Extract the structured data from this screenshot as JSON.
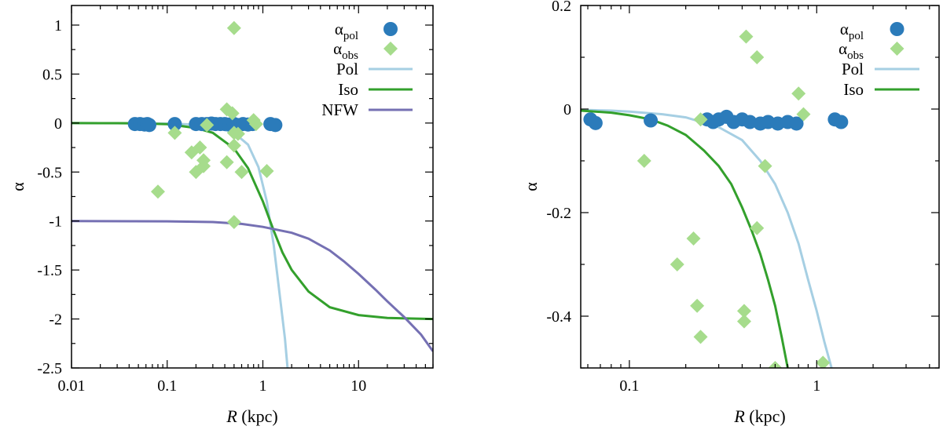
{
  "chart_data": [
    {
      "type": "scatter+line",
      "panel": "left",
      "xlabel_italic": "R",
      "xlabel_rest": " (kpc)",
      "ylabel": "α",
      "xscale": "log",
      "xlim": [
        0.01,
        60
      ],
      "ylim": [
        -2.5,
        1.2
      ],
      "grid": false,
      "legend_position": "top-right",
      "xticks": [
        0.01,
        0.1,
        1,
        10
      ],
      "xtick_labels": [
        "0.01",
        "0.1",
        "1",
        "10"
      ],
      "yticks": [
        -2.5,
        -2,
        -1.5,
        -1,
        -0.5,
        0,
        0.5,
        1
      ],
      "ytick_labels": [
        "-2.5",
        "-2",
        "-1.5",
        "-1",
        "-0.5",
        "0",
        "0.5",
        "1"
      ],
      "series": [
        {
          "name": "α",
          "name_sub": "pol",
          "kind": "points",
          "marker": "circle",
          "color": "#2b7bba",
          "points": [
            [
              0.046,
              -0.01
            ],
            [
              0.052,
              -0.01
            ],
            [
              0.058,
              -0.015
            ],
            [
              0.062,
              -0.01
            ],
            [
              0.065,
              -0.02
            ],
            [
              0.12,
              -0.01
            ],
            [
              0.2,
              -0.01
            ],
            [
              0.23,
              -0.01
            ],
            [
              0.26,
              -0.01
            ],
            [
              0.29,
              -0.005
            ],
            [
              0.32,
              -0.01
            ],
            [
              0.36,
              -0.01
            ],
            [
              0.4,
              -0.01
            ],
            [
              0.45,
              -0.015
            ],
            [
              0.5,
              -0.01
            ],
            [
              0.55,
              -0.02
            ],
            [
              0.62,
              -0.01
            ],
            [
              0.7,
              -0.015
            ],
            [
              0.78,
              -0.01
            ],
            [
              1.2,
              -0.01
            ],
            [
              1.35,
              -0.02
            ]
          ]
        },
        {
          "name": "α",
          "name_sub": "obs",
          "kind": "points",
          "marker": "diamond",
          "color": "#a6dc8c",
          "points": [
            [
              0.5,
              0.97
            ],
            [
              0.42,
              0.14
            ],
            [
              0.48,
              0.1
            ],
            [
              0.8,
              0.03
            ],
            [
              0.85,
              -0.01
            ],
            [
              0.26,
              -0.02
            ],
            [
              0.5,
              -0.1
            ],
            [
              0.12,
              -0.1
            ],
            [
              0.55,
              -0.11
            ],
            [
              0.5,
              -0.23
            ],
            [
              0.22,
              -0.25
            ],
            [
              0.18,
              -0.3
            ],
            [
              0.24,
              -0.38
            ],
            [
              0.42,
              -0.4
            ],
            [
              0.24,
              -0.44
            ],
            [
              0.2,
              -0.5
            ],
            [
              0.6,
              -0.5
            ],
            [
              1.1,
              -0.49
            ],
            [
              0.08,
              -0.7
            ],
            [
              0.5,
              -1.01
            ]
          ]
        },
        {
          "name": "Pol",
          "kind": "line",
          "color": "#a6cfe3",
          "points": [
            [
              0.01,
              -0.0002
            ],
            [
              0.05,
              -0.002
            ],
            [
              0.1,
              -0.005
            ],
            [
              0.2,
              -0.015
            ],
            [
              0.3,
              -0.035
            ],
            [
              0.5,
              -0.1
            ],
            [
              0.7,
              -0.22
            ],
            [
              0.9,
              -0.45
            ],
            [
              1.1,
              -0.8
            ],
            [
              1.3,
              -1.25
            ],
            [
              1.5,
              -1.75
            ],
            [
              1.7,
              -2.2
            ],
            [
              1.85,
              -2.6
            ],
            [
              2.0,
              -3.0
            ]
          ]
        },
        {
          "name": "Iso",
          "kind": "line",
          "color": "#33a02c",
          "points": [
            [
              0.01,
              -0.0001
            ],
            [
              0.03,
              -0.001
            ],
            [
              0.05,
              -0.003
            ],
            [
              0.1,
              -0.012
            ],
            [
              0.2,
              -0.05
            ],
            [
              0.3,
              -0.1
            ],
            [
              0.5,
              -0.26
            ],
            [
              0.7,
              -0.46
            ],
            [
              1.0,
              -0.8
            ],
            [
              1.3,
              -1.1
            ],
            [
              1.6,
              -1.32
            ],
            [
              2.0,
              -1.5
            ],
            [
              3.0,
              -1.72
            ],
            [
              5.0,
              -1.88
            ],
            [
              10,
              -1.96
            ],
            [
              20,
              -1.99
            ],
            [
              60,
              -2.0
            ]
          ]
        },
        {
          "name": "NFW",
          "kind": "line",
          "color": "#7570b3",
          "points": [
            [
              0.01,
              -1.0
            ],
            [
              0.1,
              -1.003
            ],
            [
              0.3,
              -1.01
            ],
            [
              0.6,
              -1.03
            ],
            [
              1,
              -1.06
            ],
            [
              2,
              -1.12
            ],
            [
              3,
              -1.18
            ],
            [
              5,
              -1.3
            ],
            [
              7,
              -1.41
            ],
            [
              10,
              -1.54
            ],
            [
              15,
              -1.7
            ],
            [
              20,
              -1.82
            ],
            [
              30,
              -1.98
            ],
            [
              45,
              -2.16
            ],
            [
              60,
              -2.33
            ]
          ]
        }
      ]
    },
    {
      "type": "scatter+line",
      "panel": "right",
      "xlabel_italic": "R",
      "xlabel_rest": " (kpc)",
      "ylabel": "α",
      "xscale": "log",
      "xlim": [
        0.055,
        4.5
      ],
      "ylim": [
        -0.5,
        0.2
      ],
      "grid": false,
      "legend_position": "top-right",
      "xticks": [
        0.1,
        1
      ],
      "xtick_labels": [
        "0.1",
        "1"
      ],
      "yticks": [
        -0.4,
        -0.2,
        0,
        0.2
      ],
      "ytick_labels": [
        "-0.4",
        "-0.2",
        "0",
        "0.2"
      ],
      "series": [
        {
          "name": "α",
          "name_sub": "pol",
          "kind": "points",
          "marker": "circle",
          "color": "#2b7bba",
          "points": [
            [
              0.062,
              -0.02
            ],
            [
              0.066,
              -0.027
            ],
            [
              0.13,
              -0.022
            ],
            [
              0.26,
              -0.02
            ],
            [
              0.28,
              -0.025
            ],
            [
              0.3,
              -0.02
            ],
            [
              0.33,
              -0.015
            ],
            [
              0.36,
              -0.025
            ],
            [
              0.4,
              -0.02
            ],
            [
              0.44,
              -0.025
            ],
            [
              0.5,
              -0.028
            ],
            [
              0.55,
              -0.025
            ],
            [
              0.62,
              -0.028
            ],
            [
              0.7,
              -0.025
            ],
            [
              0.78,
              -0.028
            ],
            [
              1.25,
              -0.02
            ],
            [
              1.35,
              -0.025
            ]
          ]
        },
        {
          "name": "α",
          "name_sub": "obs",
          "kind": "points",
          "marker": "diamond",
          "color": "#a6dc8c",
          "points": [
            [
              0.42,
              0.14
            ],
            [
              0.48,
              0.1
            ],
            [
              0.8,
              0.03
            ],
            [
              0.85,
              -0.01
            ],
            [
              0.24,
              -0.02
            ],
            [
              0.53,
              -0.11
            ],
            [
              0.12,
              -0.1
            ],
            [
              0.48,
              -0.23
            ],
            [
              0.22,
              -0.25
            ],
            [
              0.18,
              -0.3
            ],
            [
              0.23,
              -0.38
            ],
            [
              0.41,
              -0.39
            ],
            [
              0.41,
              -0.41
            ],
            [
              0.24,
              -0.44
            ],
            [
              0.6,
              -0.5
            ],
            [
              1.08,
              -0.49
            ]
          ]
        },
        {
          "name": "Pol",
          "kind": "line",
          "color": "#a6cfe3",
          "points": [
            [
              0.055,
              -0.0015
            ],
            [
              0.08,
              -0.003
            ],
            [
              0.1,
              -0.005
            ],
            [
              0.15,
              -0.01
            ],
            [
              0.2,
              -0.016
            ],
            [
              0.3,
              -0.035
            ],
            [
              0.4,
              -0.06
            ],
            [
              0.5,
              -0.1
            ],
            [
              0.6,
              -0.145
            ],
            [
              0.7,
              -0.2
            ],
            [
              0.8,
              -0.26
            ],
            [
              0.9,
              -0.33
            ],
            [
              1.0,
              -0.39
            ],
            [
              1.1,
              -0.45
            ],
            [
              1.2,
              -0.5
            ]
          ]
        },
        {
          "name": "Iso",
          "kind": "line",
          "color": "#33a02c",
          "points": [
            [
              0.055,
              -0.003
            ],
            [
              0.08,
              -0.007
            ],
            [
              0.1,
              -0.012
            ],
            [
              0.13,
              -0.02
            ],
            [
              0.16,
              -0.032
            ],
            [
              0.2,
              -0.05
            ],
            [
              0.25,
              -0.08
            ],
            [
              0.3,
              -0.11
            ],
            [
              0.35,
              -0.145
            ],
            [
              0.4,
              -0.19
            ],
            [
              0.45,
              -0.235
            ],
            [
              0.5,
              -0.28
            ],
            [
              0.55,
              -0.33
            ],
            [
              0.6,
              -0.38
            ],
            [
              0.65,
              -0.44
            ],
            [
              0.7,
              -0.5
            ]
          ]
        }
      ]
    }
  ]
}
